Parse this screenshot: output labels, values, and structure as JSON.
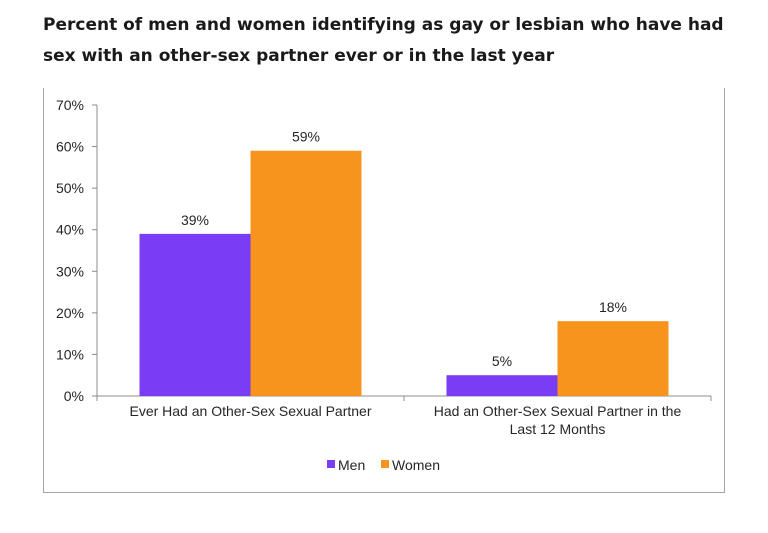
{
  "title": "Percent of men and women identifying as gay or lesbian who have had sex with an other-sex partner ever or in the last year",
  "chart_data": {
    "type": "bar",
    "categories": [
      [
        "Ever Had an Other-Sex Sexual Partner"
      ],
      [
        "Had an Other-Sex Sexual Partner in the",
        "Last 12 Months"
      ]
    ],
    "series": [
      {
        "name": "Men",
        "values": [
          39,
          5
        ],
        "labels": [
          "39%",
          "5%"
        ],
        "color": "#7a3cf5"
      },
      {
        "name": "Women",
        "values": [
          59,
          18
        ],
        "labels": [
          "59%",
          "18%"
        ],
        "color": "#f7941d"
      }
    ],
    "ylim": [
      0,
      70
    ],
    "yticks": [
      "0%",
      "10%",
      "20%",
      "30%",
      "40%",
      "50%",
      "60%",
      "70%"
    ],
    "grid": false,
    "legend_position": "bottom"
  }
}
